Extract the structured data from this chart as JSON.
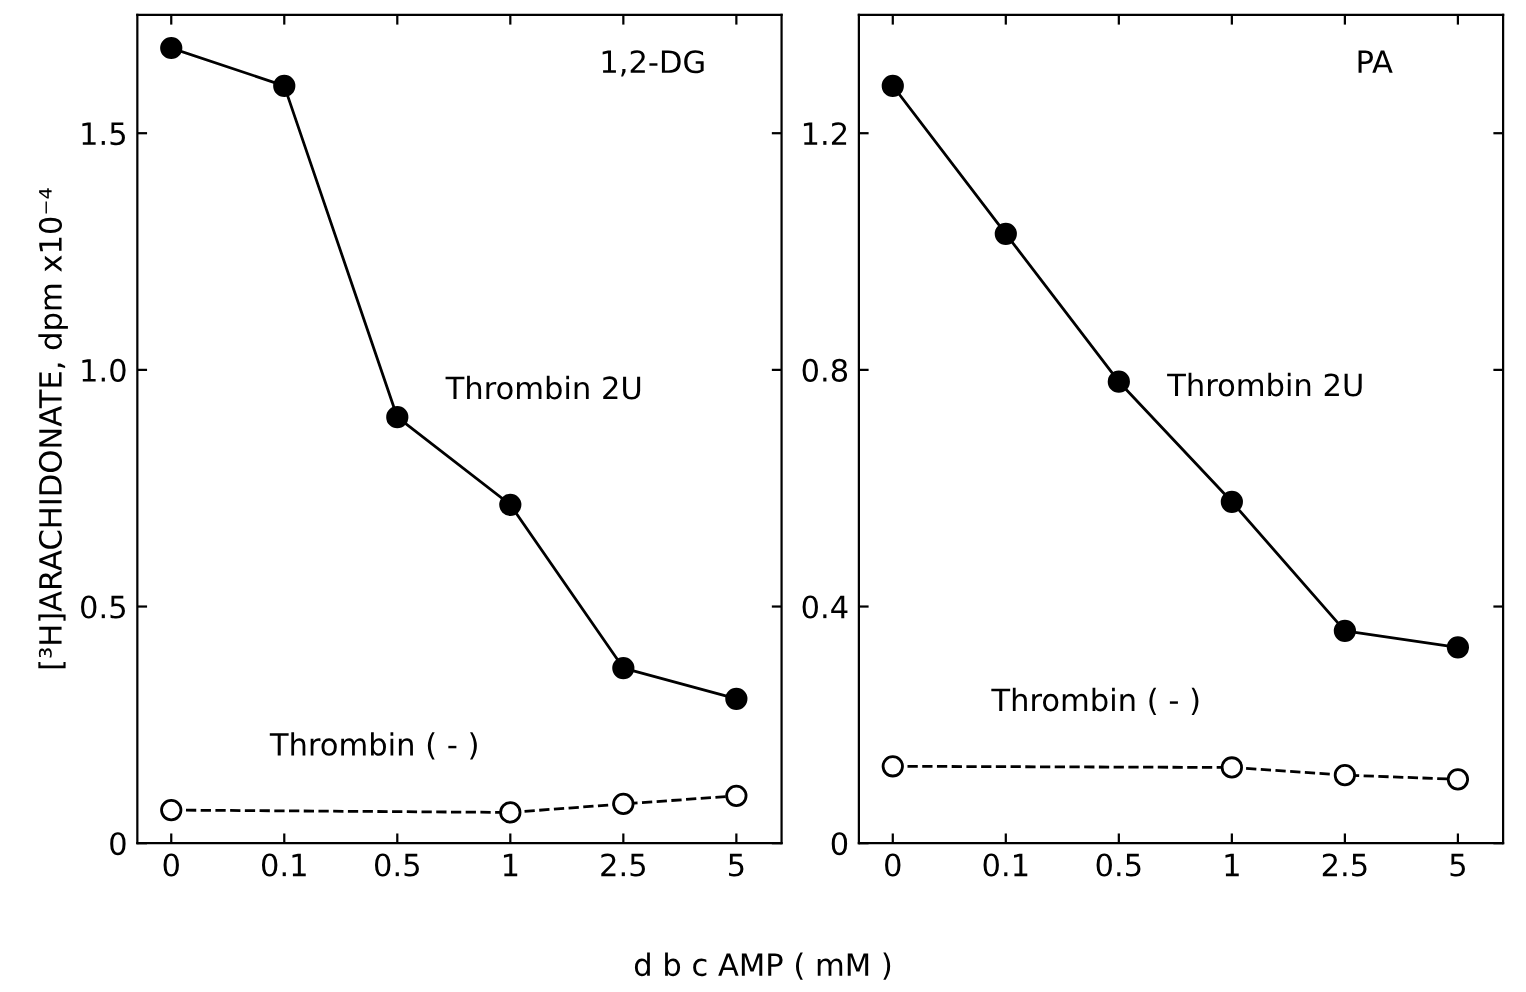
{
  "chart_data": [
    {
      "type": "line",
      "title": "1,2-DG",
      "xlabel": "d b c AMP ( mM )",
      "ylabel": "[³H]ARACHIDONATE, dpm x10⁻⁴",
      "categories": [
        "0",
        "0.1",
        "0.5",
        "1",
        "2.5",
        "5"
      ],
      "ylim": [
        0,
        1.75
      ],
      "yticks": [
        0,
        0.5,
        {
          "value": 1,
          "label": "1.0"
        },
        1.5
      ],
      "grid": false,
      "legend": false,
      "series": [
        {
          "name": "Thrombin 2U",
          "color": "#000000",
          "marker": "circle",
          "line_style": "solid",
          "values": [
            1.68,
            1.6,
            0.9,
            0.715,
            0.37,
            0.305
          ]
        },
        {
          "name": "Thrombin ( - )",
          "color": "#000000",
          "marker": "circle",
          "line_style": "dashed",
          "values": [
            0.07,
            null,
            null,
            0.065,
            0.083,
            0.1
          ]
        }
      ]
    },
    {
      "type": "line",
      "title": "PA",
      "categories": [
        "0",
        "0.1",
        "0.5",
        "1",
        "2.5",
        "5"
      ],
      "ylim": [
        0,
        1.4
      ],
      "yticks": [
        0,
        0.4,
        0.8,
        1.2
      ],
      "grid": false,
      "legend": false,
      "series": [
        {
          "name": "Thrombin 2U",
          "color": "#000000",
          "marker": "circle",
          "line_style": "solid",
          "values": [
            1.28,
            1.03,
            0.78,
            0.577,
            0.359,
            0.331
          ]
        },
        {
          "name": "Thrombin ( - )",
          "color": "#000000",
          "marker": "circle",
          "line_style": "dashed",
          "values": [
            0.13,
            null,
            null,
            0.128,
            0.115,
            0.108
          ]
        }
      ]
    }
  ]
}
